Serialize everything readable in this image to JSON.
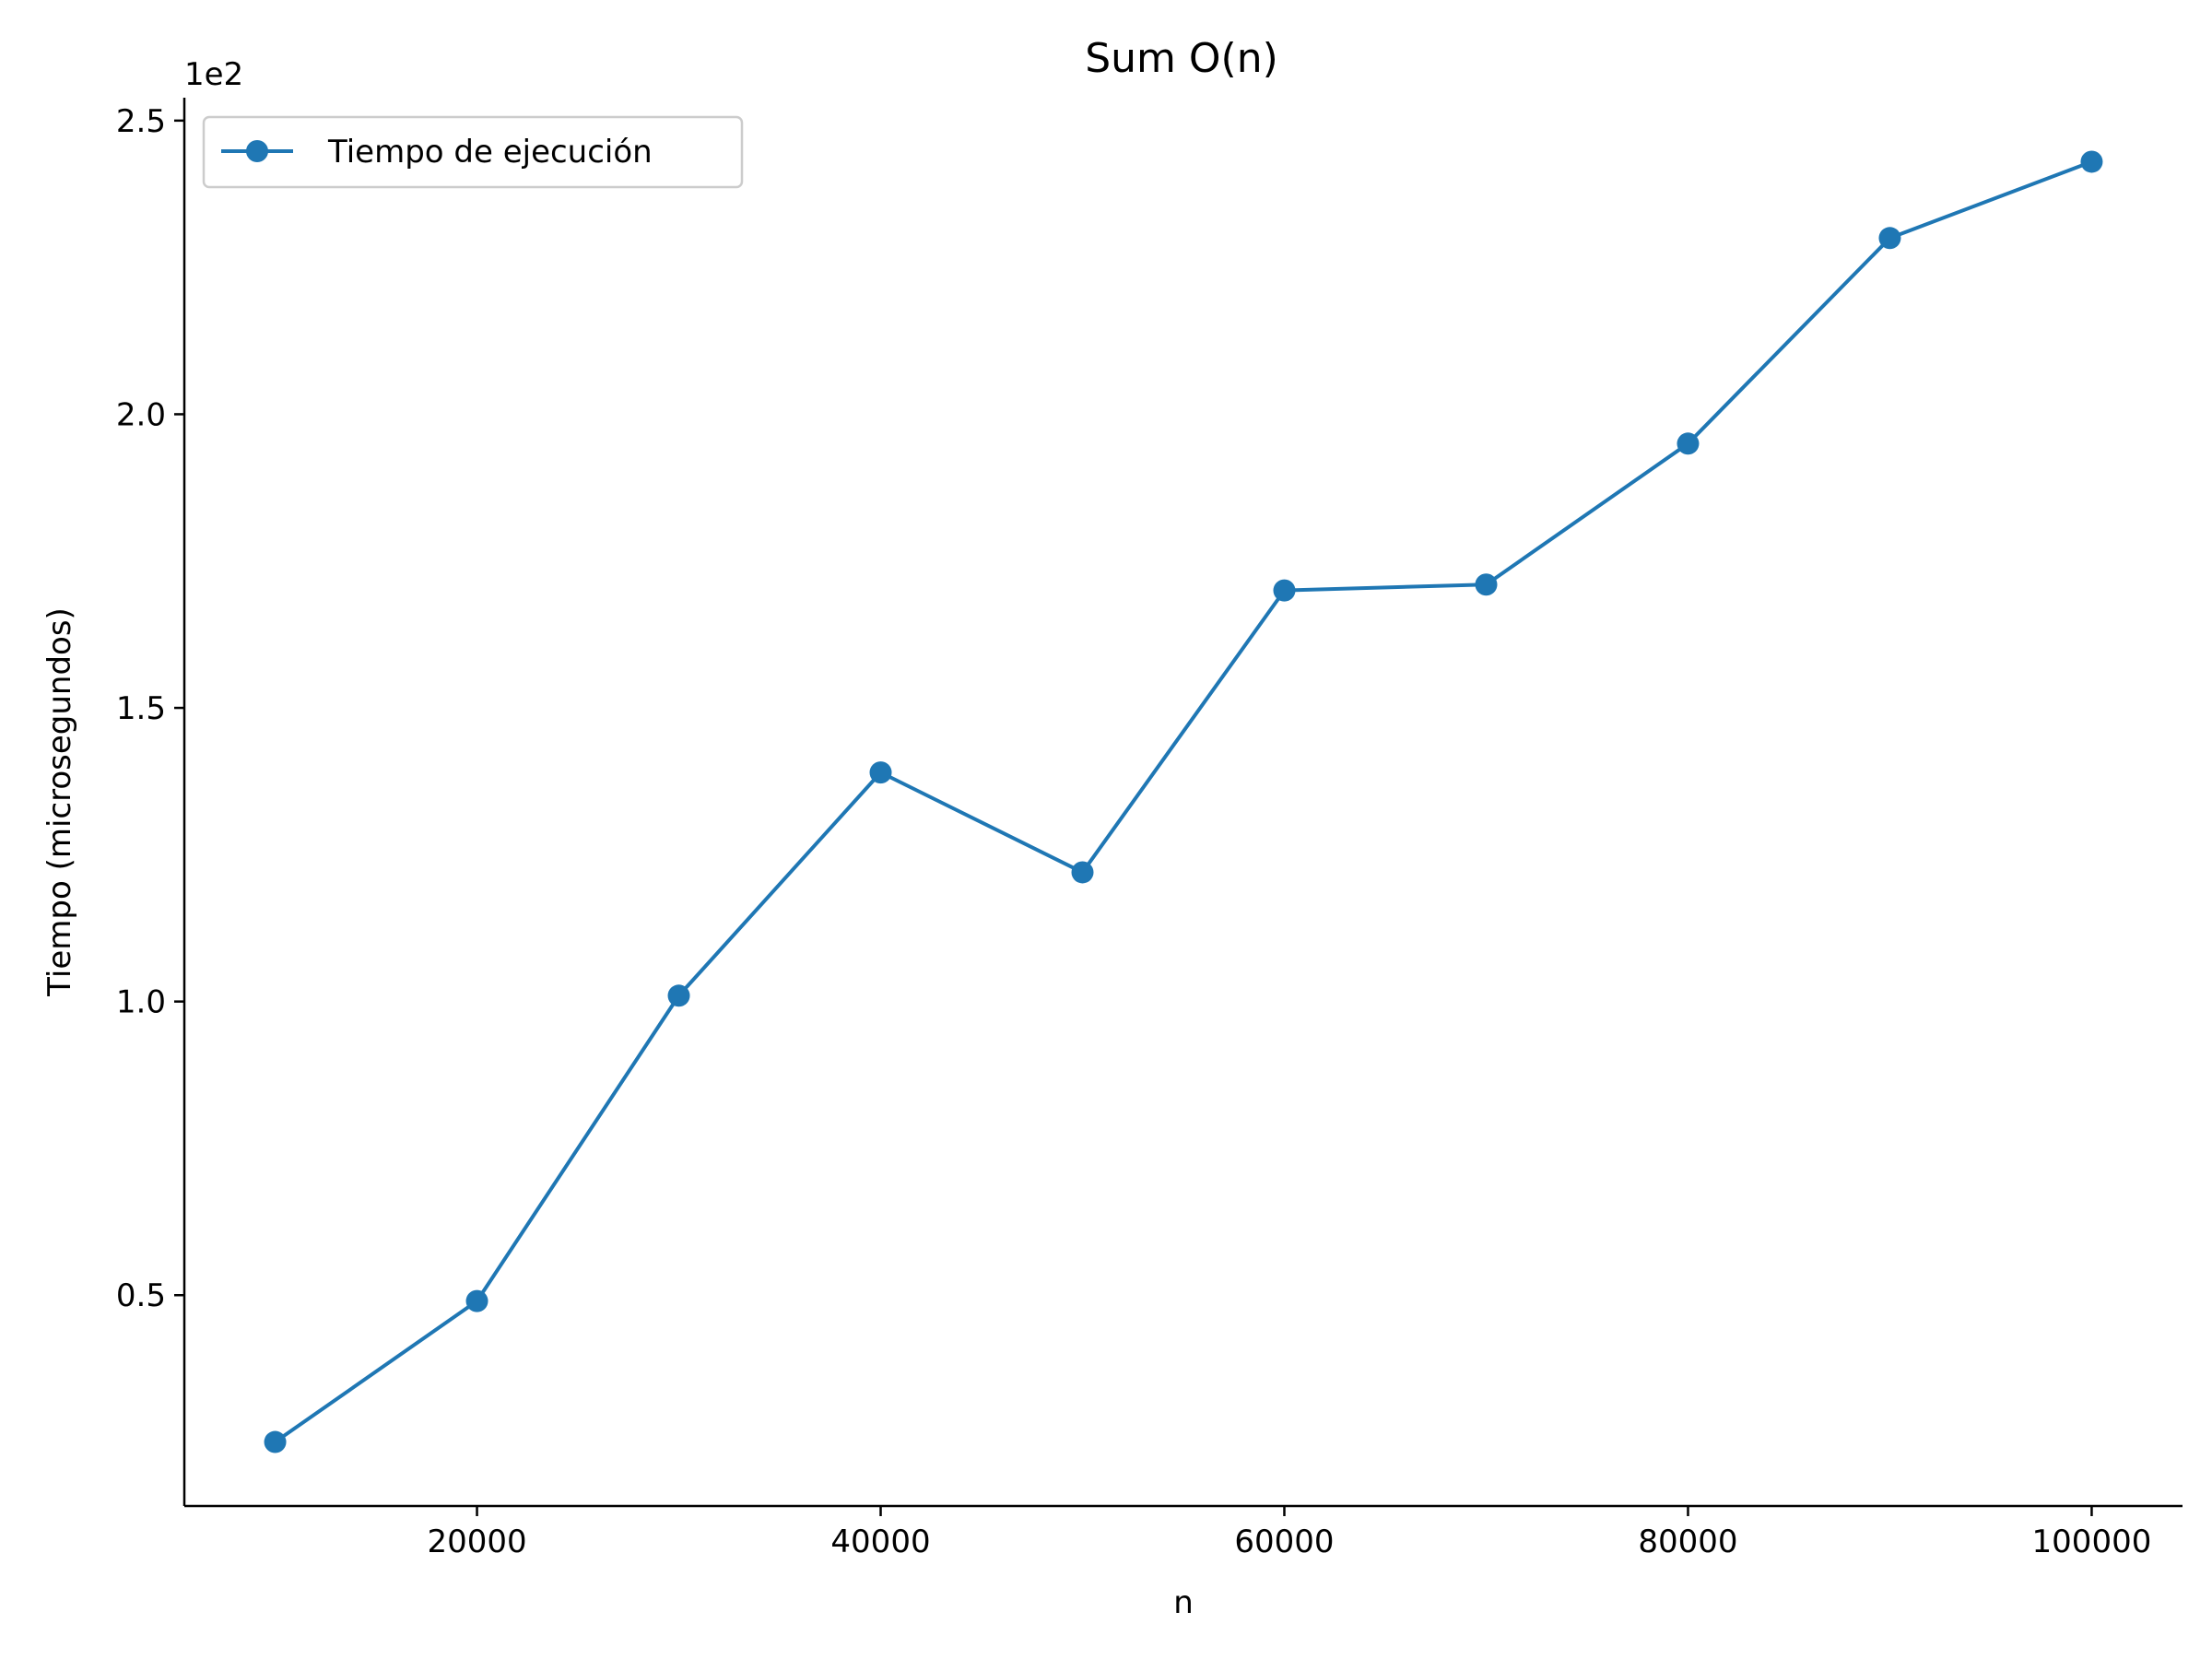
{
  "chart_data": {
    "type": "line",
    "title": "Sum O(n)",
    "xlabel": "n",
    "ylabel": "Tiempo (microsegundos)",
    "y_offset_label": "1e2",
    "x": [
      10000,
      20000,
      30000,
      40000,
      50000,
      60000,
      70000,
      80000,
      90000,
      100000
    ],
    "series": [
      {
        "name": "Tiempo de ejecución",
        "values": [
          25,
          49,
          101,
          139,
          122,
          170,
          171,
          195,
          230,
          243
        ],
        "color": "#1f77b4",
        "marker": "circle"
      }
    ],
    "xticks": [
      20000,
      40000,
      60000,
      80000,
      100000
    ],
    "xtick_labels": [
      "20000",
      "40000",
      "60000",
      "80000",
      "100000"
    ],
    "yticks": [
      50,
      100,
      150,
      200,
      250
    ],
    "ytick_labels": [
      "0.5",
      "1.0",
      "1.5",
      "2.0",
      "2.5"
    ],
    "xlim": [
      5500,
      104500
    ],
    "ylim": [
      14.1,
      253.9
    ],
    "grid": false,
    "legend_position": "top-left",
    "spines": "left-bottom"
  }
}
